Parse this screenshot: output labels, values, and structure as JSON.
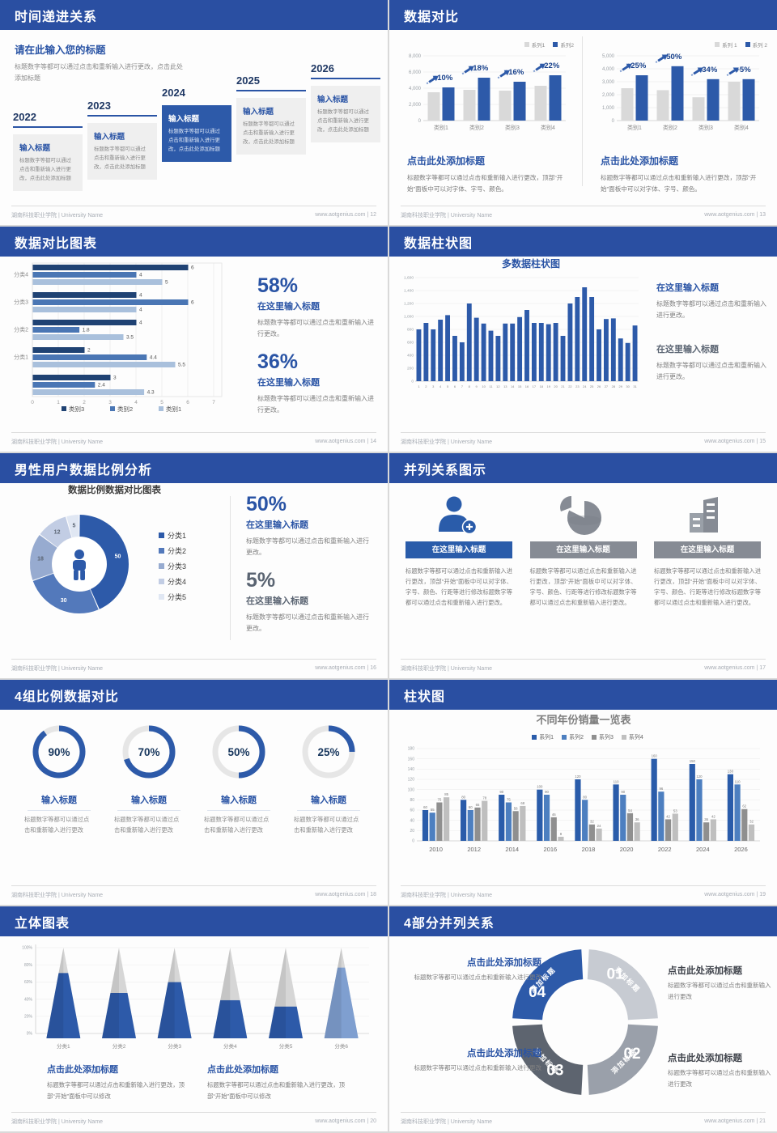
{
  "footer": {
    "org": "湖南科技职业学院 | University Name",
    "site": "www.aotgenius.com"
  },
  "palette": {
    "header": "#2a4fa2",
    "accent": "#2a54a5",
    "bar_blue": "#2d5aa9",
    "bar_gray": "#d9d9d9",
    "hbar": [
      "#1f4273",
      "#4a76b4",
      "#a9c0dc"
    ],
    "donut": [
      "#2d5aa9",
      "#5379bb",
      "#97abd0",
      "#c2cde4",
      "#e0e7f3"
    ],
    "grouped": [
      "#2a5caa",
      "#4d7fc0",
      "#8f8f8f",
      "#bfbfbf"
    ],
    "ring": [
      "#c7cbd2",
      "#9aa0aa",
      "#5d646f",
      "#2d5aa9"
    ],
    "cone_blue": "#2d5aa9",
    "cone_last": "#7f9fd0",
    "gauge": "#2d5aa9"
  },
  "slides": {
    "timeline": {
      "title": "时间递进关系",
      "page": "12",
      "heading": "请在此输入您的标题",
      "intro": "标题数字等都可以通过点击和重新输入进行更改，点击此处添加标题",
      "years": [
        "2022",
        "2023",
        "2024",
        "2025",
        "2026"
      ],
      "box_title": "输入标题",
      "box_body": "标题数字等都可以通过点击和重新输入进行更改，点击此处添加标题",
      "highlight_index": 2
    },
    "compare": {
      "title": "数据对比",
      "page": "13",
      "caption_heading": "点击此处添加标题",
      "caption_body": "标题数字等都可以通过点击和重新输入进行更改，顶部“开始”面板中可以对字体、字号、颜色。"
    },
    "hbar": {
      "title": "数据对比图表",
      "page": "14",
      "stats": [
        {
          "pct": "58%",
          "heading": "在这里输入标题",
          "body": "标题数字等都可以通过点击和重新输入进行更改。"
        },
        {
          "pct": "36%",
          "heading": "在这里输入标题",
          "body": "标题数字等都可以通过点击和重新输入进行更改。"
        }
      ]
    },
    "columns31": {
      "title": "数据柱状图",
      "page": "15",
      "chart_title": "多数据柱状图",
      "stats": [
        {
          "heading": "在这里输入标题",
          "body": "标题数字等都可以通过点击和重新输入进行更改。"
        },
        {
          "heading": "在这里输入标题",
          "body": "标题数字等都可以通过点击和重新输入进行更改。"
        }
      ]
    },
    "donut": {
      "title": "男性用户数据比例分析",
      "page": "16",
      "chart_title": "数据比例数据对比图表",
      "stats": [
        {
          "pct": "50%",
          "heading": "在这里输入标题",
          "body": "标题数字等都可以通过点击和重新输入进行更改。"
        },
        {
          "pct": "5%",
          "heading": "在这里输入标题",
          "body": "标题数字等都可以通过点击和重新输入进行更改。"
        }
      ]
    },
    "parallel3": {
      "title": "并列关系图示",
      "page": "17",
      "header": "在这里输入标题",
      "body": "标题数字等都可以通过点击和重新输入进行更改，顶部“开始”面板中可以对字体、字号、颜色、行距等进行修改标题数字等都可以通过点击和重新输入进行更改。",
      "icons": [
        "person-add",
        "pie-3d",
        "building"
      ]
    },
    "gauges": {
      "title": "4组比例数据对比",
      "page": "18",
      "items": [
        90,
        70,
        50,
        25
      ],
      "item_title": "输入标题",
      "item_body": "标题数字等都可以通过点击和重新输入进行更改"
    },
    "grouped": {
      "title": "柱状图",
      "page": "19",
      "chart_title": "不同年份销量一览表"
    },
    "cones": {
      "title": "立体图表",
      "page": "20",
      "captions": [
        {
          "heading": "点击此处添加标题",
          "body": "标题数字等都可以通过点击和重新输入进行更改，顶部“开始”面板中可以修改"
        },
        {
          "heading": "点击此处添加标题",
          "body": "标题数字等都可以通过点击和重新输入进行更改，顶部“开始”面板中可以修改"
        }
      ]
    },
    "ring4": {
      "title": "4部分并列关系",
      "page": "21",
      "segment_label": "添加标题",
      "numbers": [
        "01",
        "02",
        "03",
        "04"
      ],
      "blocks": [
        {
          "heading": "点击此处添加标题",
          "body": "标题数字等都可以通过点击和重新输入进行更改"
        },
        {
          "heading": "点击此处添加标题",
          "body": "标题数字等都可以通过点击和重新输入进行更改"
        },
        {
          "heading": "点击此处添加标题",
          "body": "标题数字等都可以通过点击和重新输入进行更改"
        },
        {
          "heading": "点击此处添加标题",
          "body": "标题数字等都可以通过点击和重新输入进行更改"
        }
      ]
    }
  },
  "chart_data": [
    {
      "id": "compare-left",
      "type": "bar",
      "legend": [
        "系列1",
        "系列2"
      ],
      "categories": [
        "类别1",
        "类别2",
        "类别3",
        "类别4"
      ],
      "series": [
        {
          "name": "系列1",
          "values": [
            3500,
            3800,
            3700,
            4300
          ]
        },
        {
          "name": "系列2",
          "values": [
            4100,
            5300,
            4800,
            5600
          ]
        }
      ],
      "growth_labels": [
        "+10%",
        "+18%",
        "+16%",
        "+22%"
      ],
      "ylim": [
        0,
        8000
      ],
      "ystep": 2000
    },
    {
      "id": "compare-right",
      "type": "bar",
      "legend": [
        "系列 1",
        "系列 2"
      ],
      "categories": [
        "类别1",
        "类别2",
        "类别3",
        "类别4"
      ],
      "series": [
        {
          "name": "系列 1",
          "values": [
            2500,
            2350,
            1800,
            3000
          ]
        },
        {
          "name": "系列 2",
          "values": [
            3500,
            4200,
            3200,
            3200
          ]
        }
      ],
      "growth_labels": [
        "+25%",
        "+50%",
        "+34%",
        "+5%"
      ],
      "ylim": [
        0,
        5000
      ],
      "ystep": 1000
    },
    {
      "id": "hbar",
      "type": "bar",
      "orientation": "horizontal",
      "categories": [
        "分类4",
        "分类3",
        "分类2",
        "分类1",
        ""
      ],
      "series": [
        {
          "name": "类别3",
          "values": [
            6,
            4,
            4,
            2,
            3
          ]
        },
        {
          "name": "类别2",
          "values": [
            4,
            6,
            1.8,
            4.4,
            2.4
          ]
        },
        {
          "name": "类别1",
          "values": [
            5,
            4,
            3.5,
            5.5,
            4.3
          ]
        }
      ],
      "xlim": [
        0,
        7
      ],
      "xstep": 1
    },
    {
      "id": "columns31",
      "type": "bar",
      "title": "多数据柱状图",
      "x_labels": [
        "1",
        "2",
        "3",
        "4",
        "5",
        "6",
        "7",
        "8",
        "9",
        "10",
        "11",
        "12",
        "13",
        "14",
        "15",
        "16",
        "17",
        "18",
        "19",
        "20",
        "21",
        "22",
        "23",
        "24",
        "25",
        "26",
        "27",
        "28",
        "29",
        "30",
        "31"
      ],
      "values": [
        800,
        900,
        800,
        950,
        1020,
        700,
        600,
        1200,
        980,
        890,
        780,
        700,
        890,
        890,
        990,
        1100,
        900,
        900,
        880,
        900,
        700,
        1200,
        1300,
        1450,
        1300,
        800,
        960,
        970,
        660,
        590,
        860
      ],
      "ylim": [
        0,
        1600
      ],
      "ystep": 200
    },
    {
      "id": "donut",
      "type": "pie",
      "title": "数据比例数据对比图表",
      "labels": [
        "分类1",
        "分类2",
        "分类3",
        "分类4",
        "分类5"
      ],
      "values": [
        50,
        30,
        18,
        12,
        5
      ]
    },
    {
      "id": "gauges",
      "type": "pie",
      "values": [
        90,
        70,
        50,
        25
      ],
      "unit": "%"
    },
    {
      "id": "grouped",
      "type": "bar",
      "title": "不同年份销量一览表",
      "categories": [
        "2010",
        "2012",
        "2014",
        "2016",
        "2018",
        "2020",
        "2022",
        "2024",
        "2026"
      ],
      "series": [
        {
          "name": "系列1",
          "values": [
            60,
            80,
            90,
            100,
            120,
            110,
            160,
            150,
            130
          ]
        },
        {
          "name": "系列2",
          "values": [
            55,
            60,
            75,
            90,
            80,
            90,
            96,
            120,
            110
          ]
        },
        {
          "name": "系列3",
          "values": [
            75,
            65,
            58,
            46,
            32,
            54,
            42,
            36,
            62
          ]
        },
        {
          "name": "系列4",
          "values": [
            85,
            78,
            68,
            8,
            24,
            36,
            53,
            42,
            32
          ]
        }
      ],
      "ylim": [
        0,
        180
      ],
      "ystep": 20
    },
    {
      "id": "cones",
      "type": "bar",
      "categories": [
        "分类1",
        "分类2",
        "分类3",
        "分类4",
        "分类5",
        "分类6"
      ],
      "values": [
        72,
        50,
        62,
        42,
        35,
        78
      ],
      "unit": "%",
      "ylim": [
        0,
        100
      ],
      "ystep": 20
    }
  ]
}
